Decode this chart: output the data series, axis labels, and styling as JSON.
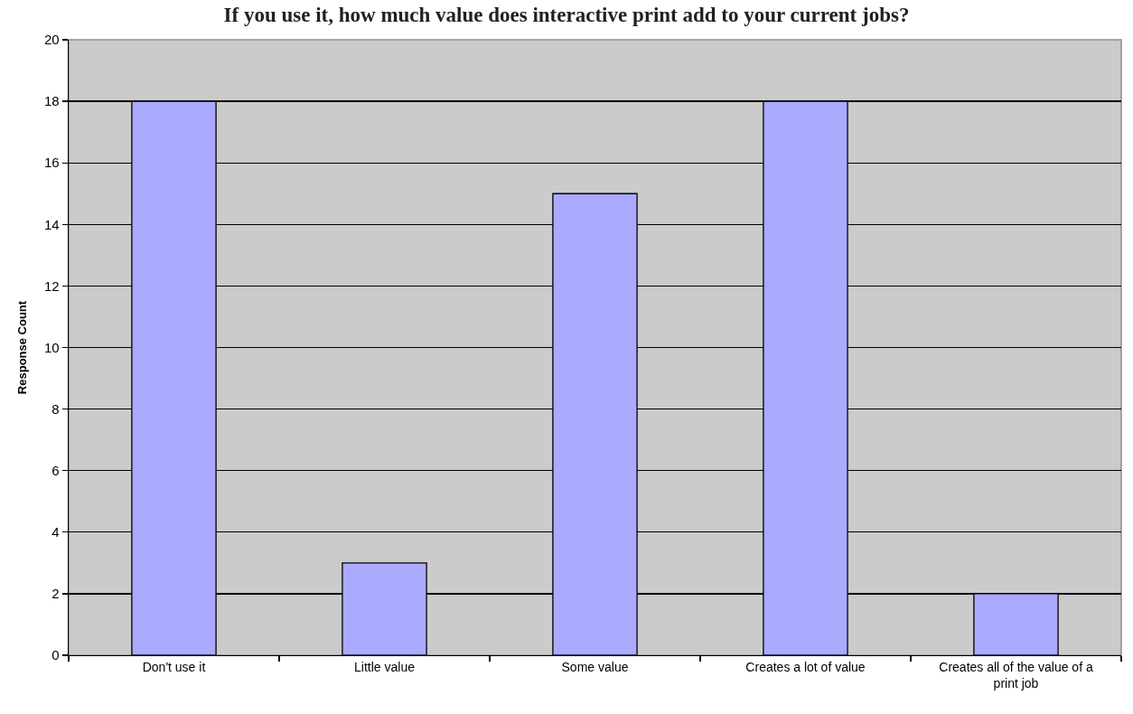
{
  "chart_data": {
    "type": "bar",
    "title": "If you use it, how much value does interactive print add to your current jobs?",
    "ylabel": "Response Count",
    "categories": [
      "Don't use it",
      "Little value",
      "Some value",
      "Creates a lot of value",
      "Creates all of the value of a print job"
    ],
    "values": [
      18,
      3,
      15,
      18,
      2
    ],
    "color": "#aaaaff",
    "ylim": [
      0,
      20
    ],
    "yticks": [
      0,
      2,
      4,
      6,
      8,
      10,
      12,
      14,
      16,
      18,
      20
    ],
    "grid": "y",
    "legend": false
  }
}
